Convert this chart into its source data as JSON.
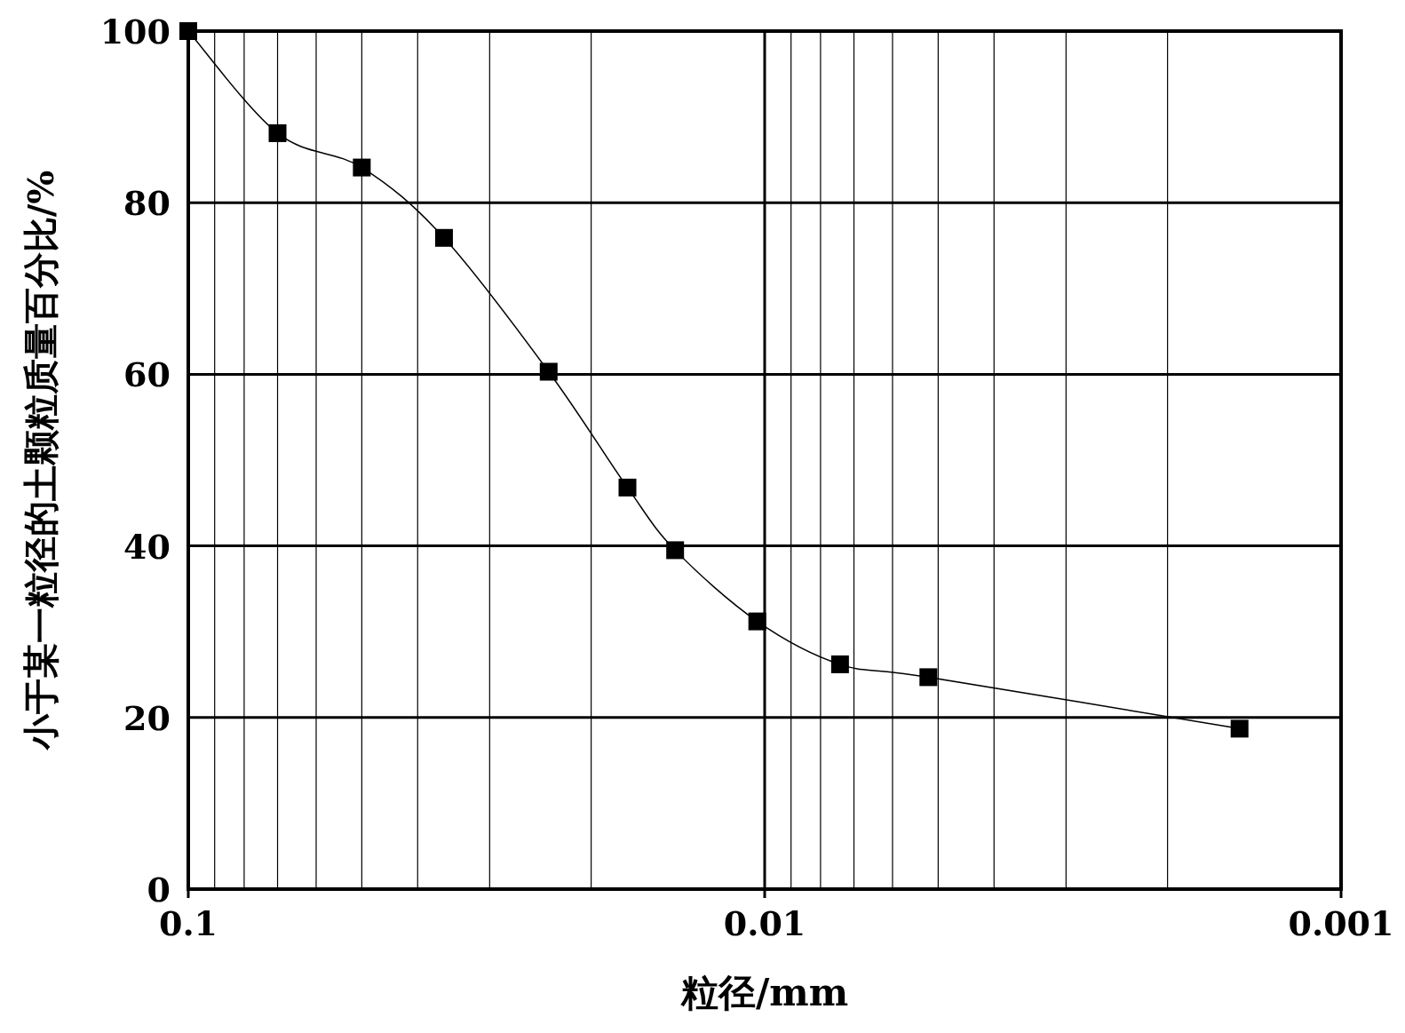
{
  "chart_data": {
    "type": "line",
    "xlabel": "粒径/mm",
    "ylabel": "小于某一粒径的土颗粒质量百分比/%",
    "x": [
      0.1,
      0.07,
      0.05,
      0.036,
      0.0237,
      0.0173,
      0.0143,
      0.0103,
      0.0074,
      0.0052,
      0.0015
    ],
    "values": [
      100,
      88.1,
      84.1,
      75.9,
      60.3,
      46.8,
      39.5,
      31.2,
      26.2,
      24.7,
      18.7
    ],
    "color": "#000000",
    "marker": "square",
    "line_style": "solid",
    "log": "x",
    "grid": true,
    "xlim": [
      0.1,
      0.001
    ],
    "ylim": [
      0,
      100
    ],
    "xticks": [
      0.1,
      0.01,
      0.001
    ],
    "yticks": [
      0,
      20,
      40,
      60,
      80,
      100
    ]
  }
}
